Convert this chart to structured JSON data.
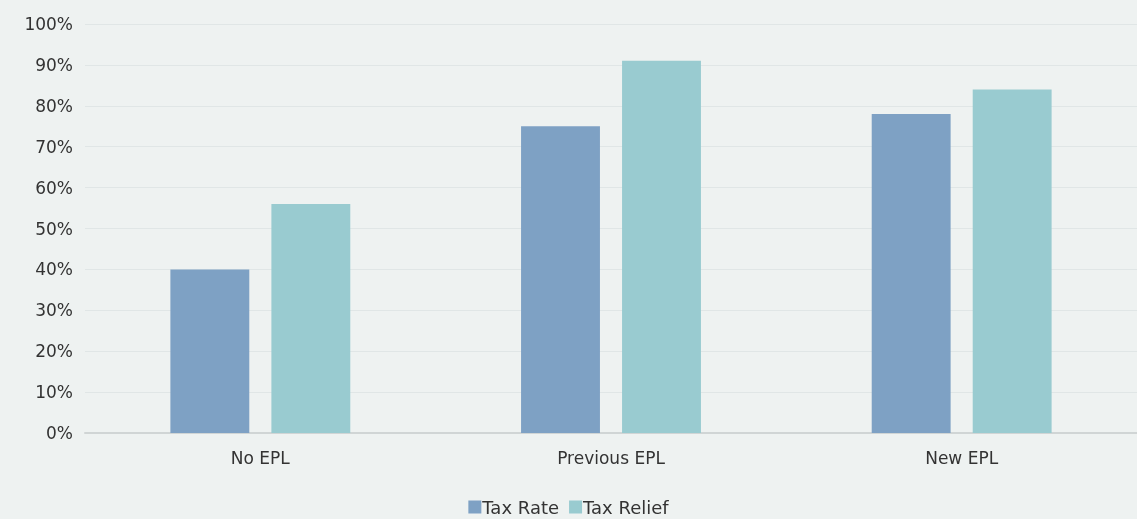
{
  "chart_data": {
    "type": "bar",
    "categories": [
      "No EPL",
      "Previous EPL",
      "New EPL"
    ],
    "series": [
      {
        "name": "Tax Rate",
        "color": "#7ea1c4",
        "values": [
          40,
          75,
          78
        ]
      },
      {
        "name": "Tax Relief",
        "color": "#99cbd0",
        "values": [
          56,
          91,
          84
        ]
      }
    ],
    "ylim": [
      0,
      100
    ],
    "yticks": [
      {
        "value": 0,
        "label": "0%"
      },
      {
        "value": 10,
        "label": "10%"
      },
      {
        "value": 20,
        "label": "20%"
      },
      {
        "value": 30,
        "label": "30%"
      },
      {
        "value": 40,
        "label": "40%"
      },
      {
        "value": 50,
        "label": "50%"
      },
      {
        "value": 60,
        "label": "60%"
      },
      {
        "value": 70,
        "label": "70%"
      },
      {
        "value": 80,
        "label": "80%"
      },
      {
        "value": 90,
        "label": "90%"
      },
      {
        "value": 100,
        "label": "100%"
      }
    ],
    "grid": "y",
    "legend": "bottom"
  }
}
